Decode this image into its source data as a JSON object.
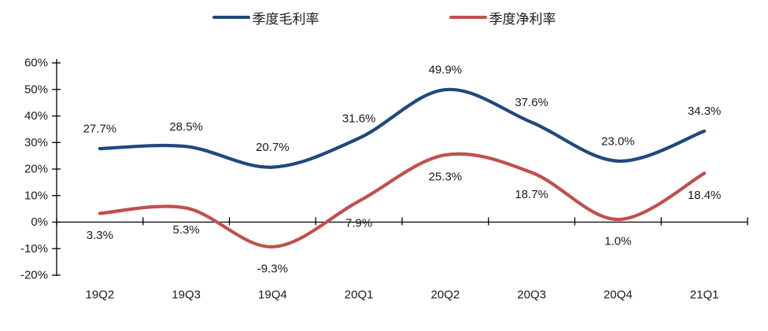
{
  "chart_data": {
    "type": "line",
    "smooth": true,
    "title": "",
    "xlabel": "",
    "ylabel": "",
    "categories": [
      "19Q2",
      "19Q3",
      "19Q4",
      "20Q1",
      "20Q2",
      "20Q3",
      "20Q4",
      "21Q1"
    ],
    "series": [
      {
        "name": "季度毛利率",
        "color": "#1F497D",
        "values": [
          27.7,
          28.5,
          20.7,
          31.6,
          49.9,
          37.6,
          23.0,
          34.3
        ],
        "labels": [
          "27.7%",
          "28.5%",
          "20.7%",
          "31.6%",
          "49.9%",
          "37.6%",
          "23.0%",
          "34.3%"
        ],
        "label_position": "above"
      },
      {
        "name": "季度净利率",
        "color": "#C0504D",
        "values": [
          3.3,
          5.3,
          -9.3,
          7.9,
          25.3,
          18.7,
          1.0,
          18.4
        ],
        "labels": [
          "3.3%",
          "5.3%",
          "-9.3%",
          "7.9%",
          "25.3%",
          "18.7%",
          "1.0%",
          "18.4%"
        ],
        "label_position": "below"
      }
    ],
    "ylim": [
      -20,
      60
    ],
    "ytick_step": 10,
    "yticks": [
      {
        "value": 60,
        "label": "60%"
      },
      {
        "value": 50,
        "label": "50%"
      },
      {
        "value": 40,
        "label": "40%"
      },
      {
        "value": 30,
        "label": "30%"
      },
      {
        "value": 20,
        "label": "20%"
      },
      {
        "value": 10,
        "label": "10%"
      },
      {
        "value": 0,
        "label": "0%"
      },
      {
        "value": -10,
        "label": "-10%"
      },
      {
        "value": -20,
        "label": "-20%"
      }
    ],
    "legend_position": "top",
    "grid": false,
    "axis_color": "#000000",
    "label_color": "#1a1a1a"
  }
}
